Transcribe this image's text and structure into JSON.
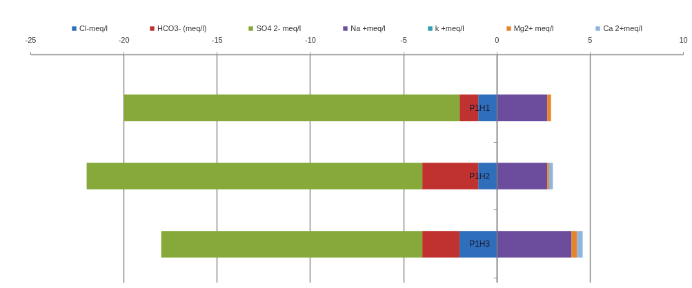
{
  "chart_data": {
    "type": "bar",
    "orientation": "horizontal",
    "stacked": true,
    "categories": [
      "P1H1",
      "P1H2",
      "P1H3"
    ],
    "series": [
      {
        "name": "Cl-meq/l",
        "color": "#2f6eba",
        "values": [
          -1,
          -1,
          -2
        ]
      },
      {
        "name": "HCO3- (meq/l)",
        "color": "#c0322f",
        "values": [
          -1,
          -3,
          -2
        ]
      },
      {
        "name": "SO4 2- meq/l",
        "color": "#86a93a",
        "values": [
          -18,
          -18,
          -14
        ]
      },
      {
        "name": "Na +meq/l",
        "color": "#6c4c9c",
        "values": [
          2.7,
          2.7,
          4.0
        ]
      },
      {
        "name": "k +meq/l",
        "color": "#2ea0b0",
        "values": [
          null,
          null,
          null
        ]
      },
      {
        "name": "Mg2+ meq/l",
        "color": "#e5852b",
        "values": [
          0.2,
          0.1,
          0.3
        ]
      },
      {
        "name": "Ca 2+meq/l",
        "color": "#8fb4e0",
        "values": [
          null,
          0.2,
          0.3
        ]
      }
    ],
    "xlim": [
      -25,
      10
    ],
    "xticks": [
      -25,
      -20,
      -15,
      -10,
      -5,
      0,
      5,
      10
    ],
    "grid": "x",
    "legend": "top"
  }
}
